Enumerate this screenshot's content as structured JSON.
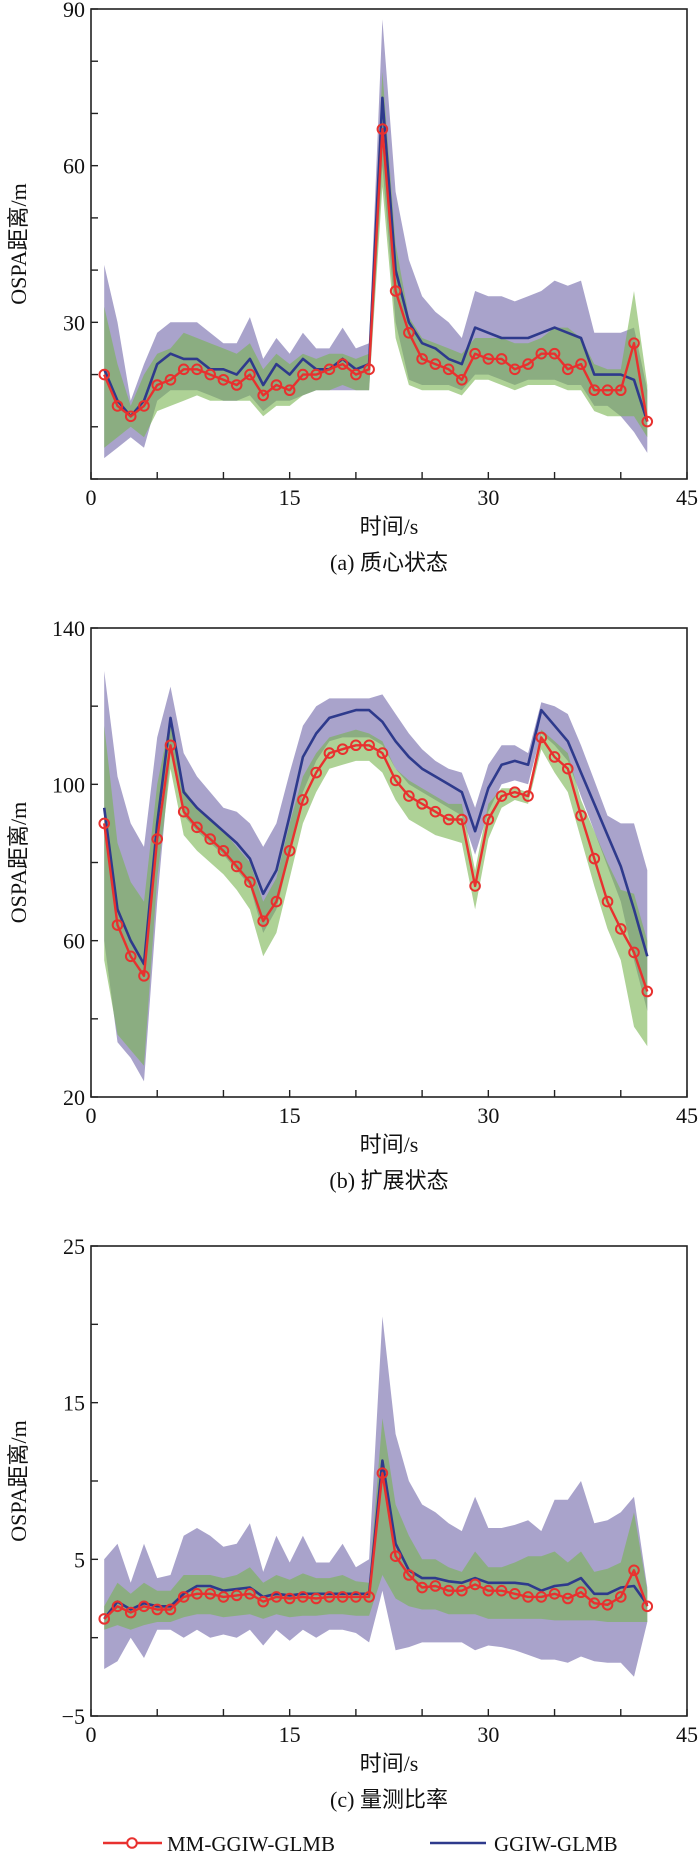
{
  "legend": {
    "items": [
      {
        "label": "MM-GGIW-GLMB",
        "color": "#e8312f",
        "marker": "circle"
      },
      {
        "label": "GGIW-GLMB",
        "color": "#2e3a8c",
        "marker": "none"
      }
    ]
  },
  "colors": {
    "band_ggiw": "#a9a3cb",
    "band_mm": "rgba(120,180,80,0.6)",
    "axis": "#222222"
  },
  "chart_data": [
    {
      "type": "line",
      "title": "(a) 质心状态",
      "xlabel": "时间/s",
      "ylabel": "OSPA距离/m",
      "xlim": [
        0,
        45
      ],
      "ylim": [
        0,
        90
      ],
      "xticks": [
        "0",
        "15",
        "30",
        "45"
      ],
      "xtick_values": [
        0,
        15,
        30,
        45
      ],
      "yticks": [
        "30",
        "60",
        "90"
      ],
      "ytick_values": [
        30,
        60,
        90
      ],
      "x": [
        1,
        2,
        3,
        4,
        5,
        6,
        7,
        8,
        9,
        10,
        11,
        12,
        13,
        14,
        15,
        16,
        17,
        18,
        19,
        20,
        21,
        22,
        23,
        24,
        25,
        26,
        27,
        28,
        29,
        30,
        31,
        32,
        33,
        34,
        35,
        36,
        37,
        38,
        39,
        40,
        41,
        42
      ],
      "series": [
        {
          "name": "MM-GGIW-GLMB",
          "values": [
            20,
            14,
            12,
            14,
            18,
            19,
            21,
            21,
            20,
            19,
            18,
            20,
            16,
            18,
            17,
            20,
            20,
            21,
            22,
            20,
            21,
            67,
            36,
            28,
            23,
            22,
            21,
            19,
            24,
            23,
            23,
            21,
            22,
            24,
            24,
            21,
            22,
            17,
            17,
            17,
            26,
            11
          ],
          "band_upper": [
            33,
            22,
            14,
            20,
            24,
            25,
            28,
            27,
            26,
            25,
            24,
            26,
            21,
            24,
            22,
            24,
            23,
            24,
            24,
            23,
            24,
            78,
            45,
            31,
            27,
            26,
            25,
            24,
            27,
            27,
            27,
            26,
            26,
            27,
            29,
            29,
            27,
            22,
            21,
            21,
            36,
            18
          ],
          "band_lower": [
            6,
            8,
            10,
            8,
            13,
            14,
            15,
            16,
            15,
            15,
            15,
            15,
            12,
            14,
            14,
            16,
            17,
            17,
            18,
            17,
            17,
            56,
            27,
            18,
            17,
            17,
            17,
            16,
            19,
            19,
            18,
            17,
            18,
            18,
            18,
            17,
            17,
            13,
            12,
            12,
            12,
            8
          ]
        },
        {
          "name": "GGIW-GLMB",
          "values": [
            21,
            15,
            12,
            15,
            22,
            24,
            23,
            23,
            21,
            21,
            20,
            23,
            18,
            22,
            20,
            23,
            21,
            21,
            23,
            21,
            22,
            73,
            40,
            30,
            26,
            25,
            23,
            22,
            29,
            28,
            27,
            27,
            27,
            28,
            29,
            28,
            27,
            20,
            20,
            20,
            19,
            11
          ],
          "band_upper": [
            41,
            30,
            15,
            22,
            28,
            30,
            30,
            30,
            28,
            26,
            26,
            31,
            23,
            27,
            24,
            28,
            25,
            25,
            29,
            25,
            26,
            88,
            55,
            42,
            35,
            32,
            30,
            27,
            36,
            35,
            35,
            34,
            35,
            36,
            38,
            37,
            38,
            28,
            28,
            28,
            29,
            17
          ],
          "band_lower": [
            4,
            6,
            8,
            6,
            15,
            17,
            17,
            17,
            16,
            15,
            15,
            16,
            13,
            15,
            15,
            16,
            17,
            17,
            17,
            17,
            17,
            60,
            30,
            19,
            18,
            18,
            18,
            17,
            20,
            20,
            19,
            18,
            19,
            19,
            19,
            18,
            18,
            14,
            14,
            12,
            9,
            5
          ]
        }
      ]
    },
    {
      "type": "line",
      "title": "(b) 扩展状态",
      "xlabel": "时间/s",
      "ylabel": "OSPA距离/m",
      "xlim": [
        0,
        45
      ],
      "ylim": [
        20,
        140
      ],
      "xticks": [
        "0",
        "15",
        "30",
        "45"
      ],
      "xtick_values": [
        0,
        15,
        30,
        45
      ],
      "yticks": [
        "20",
        "60",
        "100",
        "140"
      ],
      "ytick_values": [
        20,
        60,
        100,
        140
      ],
      "x": [
        1,
        2,
        3,
        4,
        5,
        6,
        7,
        8,
        9,
        10,
        11,
        12,
        13,
        14,
        15,
        16,
        17,
        18,
        19,
        20,
        21,
        22,
        23,
        24,
        25,
        26,
        27,
        28,
        29,
        30,
        31,
        32,
        33,
        34,
        35,
        36,
        37,
        38,
        39,
        40,
        41,
        42
      ],
      "series": [
        {
          "name": "MM-GGIW-GLMB",
          "values": [
            90,
            64,
            56,
            51,
            86,
            110,
            93,
            89,
            86,
            83,
            79,
            75,
            65,
            70,
            83,
            96,
            103,
            108,
            109,
            110,
            110,
            108,
            101,
            97,
            95,
            93,
            91,
            91,
            74,
            91,
            97,
            98,
            97,
            112,
            107,
            104,
            92,
            81,
            70,
            63,
            57,
            47
          ],
          "band_upper": [
            115,
            85,
            75,
            70,
            100,
            117,
            99,
            94,
            91,
            88,
            84,
            80,
            70,
            76,
            90,
            102,
            108,
            112,
            113,
            114,
            113,
            111,
            104,
            101,
            99,
            97,
            95,
            95,
            78,
            95,
            99,
            99,
            98,
            114,
            111,
            108,
            96,
            88,
            80,
            73,
            72,
            60
          ],
          "band_lower": [
            55,
            36,
            32,
            28,
            76,
            104,
            87,
            83,
            80,
            77,
            73,
            68,
            56,
            62,
            76,
            90,
            98,
            104,
            105,
            106,
            106,
            103,
            96,
            91,
            89,
            87,
            86,
            85,
            68,
            86,
            94,
            96,
            95,
            109,
            103,
            98,
            86,
            74,
            63,
            55,
            38,
            33
          ]
        },
        {
          "name": "GGIW-GLMB",
          "values": [
            94,
            68,
            60,
            54,
            90,
            117,
            98,
            94,
            91,
            88,
            85,
            81,
            72,
            78,
            92,
            107,
            113,
            117,
            118,
            119,
            119,
            116,
            111,
            107,
            104,
            102,
            100,
            98,
            88,
            99,
            105,
            106,
            105,
            119,
            115,
            111,
            103,
            95,
            87,
            79,
            68,
            56
          ],
          "band_upper": [
            129,
            102,
            90,
            84,
            112,
            125,
            108,
            102,
            98,
            94,
            93,
            90,
            84,
            90,
            103,
            115,
            120,
            122,
            122,
            122,
            122,
            123,
            118,
            113,
            109,
            106,
            104,
            103,
            94,
            105,
            110,
            110,
            108,
            121,
            120,
            118,
            110,
            101,
            92,
            90,
            90,
            78
          ],
          "band_lower": [
            60,
            34,
            30,
            24,
            70,
            108,
            92,
            88,
            85,
            82,
            78,
            74,
            62,
            68,
            82,
            98,
            106,
            111,
            112,
            112,
            112,
            110,
            104,
            100,
            98,
            96,
            94,
            92,
            82,
            93,
            100,
            101,
            100,
            113,
            110,
            106,
            97,
            88,
            79,
            70,
            55,
            42
          ]
        }
      ]
    },
    {
      "type": "line",
      "title": "(c) 量测比率",
      "xlabel": "时间/s",
      "ylabel": "OSPA距离/m",
      "xlim": [
        0,
        45
      ],
      "ylim": [
        -5,
        25
      ],
      "xticks": [
        "0",
        "15",
        "30",
        "45"
      ],
      "xtick_values": [
        0,
        15,
        30,
        45
      ],
      "yticks": [
        "−5",
        "5",
        "15",
        "25"
      ],
      "ytick_values": [
        -5,
        5,
        15,
        25
      ],
      "x": [
        1,
        2,
        3,
        4,
        5,
        6,
        7,
        8,
        9,
        10,
        11,
        12,
        13,
        14,
        15,
        16,
        17,
        18,
        19,
        20,
        21,
        22,
        23,
        24,
        25,
        26,
        27,
        28,
        29,
        30,
        31,
        32,
        33,
        34,
        35,
        36,
        37,
        38,
        39,
        40,
        41,
        42
      ],
      "series": [
        {
          "name": "MM-GGIW-GLMB",
          "values": [
            1.2,
            2,
            1.6,
            2,
            1.8,
            1.8,
            2.6,
            2.8,
            2.8,
            2.6,
            2.7,
            2.8,
            2.3,
            2.6,
            2.5,
            2.6,
            2.5,
            2.6,
            2.6,
            2.6,
            2.6,
            10.5,
            5.2,
            4,
            3.2,
            3.3,
            3,
            3,
            3.4,
            3,
            3,
            2.8,
            2.6,
            2.6,
            2.8,
            2.5,
            2.9,
            2.2,
            2.1,
            2.6,
            4.3,
            2
          ],
          "band_upper": [
            2,
            3.5,
            2.8,
            3.5,
            3,
            3,
            4,
            4,
            4,
            3.8,
            4,
            4.5,
            3.5,
            4,
            3.7,
            4.1,
            3.8,
            3.8,
            4,
            3.6,
            3.5,
            14,
            8.5,
            6.5,
            5,
            5,
            4.5,
            4.2,
            5.5,
            4.5,
            4.5,
            4.8,
            5.2,
            5.2,
            5.5,
            4.8,
            5.5,
            4.2,
            4.4,
            4.8,
            8,
            3
          ],
          "band_lower": [
            0.5,
            0.8,
            0.5,
            0.8,
            1,
            1,
            1.3,
            1.5,
            1.5,
            1.3,
            1.4,
            1.5,
            1.2,
            1.5,
            1.3,
            1.4,
            1.4,
            1.5,
            1.5,
            1.4,
            1.4,
            4,
            2.5,
            2,
            1.8,
            1.8,
            1.5,
            1.5,
            1.5,
            1.2,
            1.2,
            1.2,
            1.2,
            1.2,
            1.1,
            1.1,
            1.1,
            1.1,
            1,
            1,
            1,
            1
          ]
        },
        {
          "name": "GGIW-GLMB",
          "values": [
            1.2,
            2.3,
            1.8,
            2.2,
            2,
            2,
            2.8,
            3.3,
            3.3,
            3,
            3.1,
            3.2,
            2.6,
            2.8,
            2.7,
            2.8,
            2.8,
            2.8,
            2.8,
            2.8,
            2.8,
            11.3,
            6,
            4.3,
            3.8,
            3.8,
            3.6,
            3.5,
            3.8,
            3.5,
            3.5,
            3.5,
            3.4,
            3,
            3.3,
            3.4,
            3.8,
            2.8,
            2.8,
            3.2,
            3.3,
            2.1
          ],
          "band_upper": [
            5,
            6,
            3.5,
            6,
            3.8,
            4,
            6.5,
            7,
            6.5,
            5.8,
            6,
            7.3,
            4.2,
            6.5,
            4.8,
            6.5,
            4.8,
            4.8,
            6,
            4.5,
            5,
            20.5,
            13,
            10,
            8.5,
            8,
            7.3,
            6.8,
            9,
            7,
            7,
            7.2,
            7.5,
            6.8,
            8.8,
            8.8,
            10,
            7.3,
            7.5,
            8,
            9,
            3.2
          ],
          "band_lower": [
            -2,
            -1.5,
            0,
            -1.3,
            0.5,
            0.5,
            0,
            0.5,
            0,
            0.2,
            0,
            0.5,
            -0.5,
            0.5,
            -0.2,
            0.5,
            0,
            0.5,
            0.5,
            0.3,
            -0.3,
            3,
            -0.8,
            -0.6,
            -0.3,
            -0.3,
            -0.3,
            -0.3,
            -0.8,
            -0.5,
            -0.6,
            -0.8,
            -1.1,
            -1.4,
            -1.4,
            -1.6,
            -1.2,
            -1.5,
            -1.6,
            -1.6,
            -2.5,
            1
          ]
        }
      ]
    }
  ]
}
